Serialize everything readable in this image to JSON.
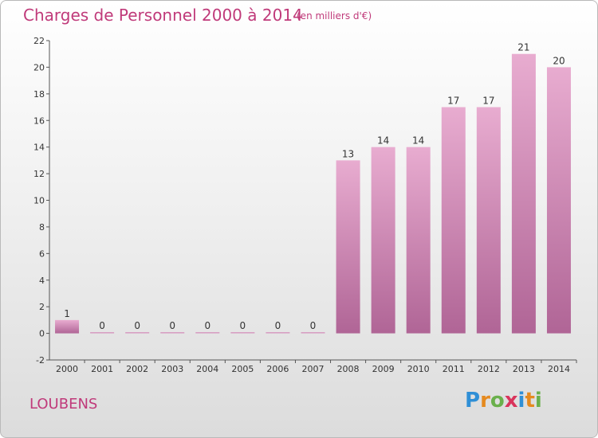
{
  "header": {
    "title": "Charges de Personnel 2000 à 2014",
    "subtitle": "(en milliers d'€)"
  },
  "footer": {
    "commune": "LOUBENS",
    "logo": {
      "p": "P",
      "r": "r",
      "o": "o",
      "x": "x",
      "i": "i",
      "t": "t",
      "i2": "i"
    }
  },
  "colors": {
    "bar_top": "#e4a6cb",
    "bar_bottom": "#b3689c",
    "text": "#c03a7a"
  },
  "chart_data": {
    "type": "bar",
    "categories": [
      "2000",
      "2001",
      "2002",
      "2003",
      "2004",
      "2005",
      "2006",
      "2007",
      "2008",
      "2009",
      "2010",
      "2011",
      "2012",
      "2013",
      "2014"
    ],
    "values": [
      1,
      0,
      0,
      0,
      0,
      0,
      0,
      0,
      13,
      14,
      14,
      17,
      17,
      21,
      20
    ],
    "title": "Charges de Personnel 2000 à 2014",
    "ylim": [
      -2,
      22
    ],
    "yticks": [
      -2,
      0,
      2,
      4,
      6,
      8,
      10,
      12,
      14,
      16,
      18,
      20,
      22
    ],
    "grid": false
  }
}
